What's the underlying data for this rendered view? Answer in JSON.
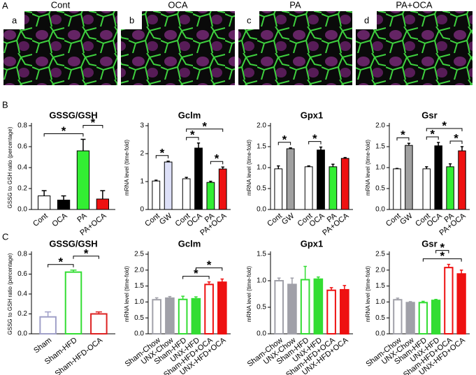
{
  "panel_labels": [
    "A",
    "B",
    "C"
  ],
  "images": [
    {
      "title": "Cont",
      "letter": "a"
    },
    {
      "title": "OCA",
      "letter": "b"
    },
    {
      "title": "PA",
      "letter": "c"
    },
    {
      "title": "PA+OCA",
      "letter": "d"
    }
  ],
  "chart_data": [
    {
      "type": "bar",
      "title": "GSSG/GSH",
      "ylabel": "GSSG to GSH ratio (percentage)",
      "categories": [
        "Cont",
        "OCA",
        "PA",
        "PA+OCA"
      ],
      "values": [
        0.13,
        0.09,
        0.56,
        0.1
      ],
      "errors": [
        0.05,
        0.04,
        0.11,
        0.08
      ],
      "edge_colors": [
        "#000",
        "#000",
        "#000",
        "#000"
      ],
      "fill_colors": [
        "#fff",
        "#000",
        "#33ee33",
        "#ee1111"
      ],
      "ylim": [
        0,
        0.8
      ],
      "yticks": [
        {
          "value": 0,
          "label": "0.0"
        },
        {
          "value": 0.2,
          "label": "0.2"
        },
        {
          "value": 0.4,
          "label": "0.4"
        },
        {
          "value": 0.6,
          "label": "0.6"
        },
        {
          "value": 0.8,
          "label": "0.8"
        }
      ],
      "annotations": [
        {
          "text": "*",
          "between": [
            0,
            2
          ]
        },
        {
          "text": "*",
          "between": [
            2,
            3
          ]
        }
      ]
    },
    {
      "type": "bar",
      "title": "Gclm",
      "ylabel": "mRNA level (time-fold)",
      "categories": [
        "Cont",
        "GW",
        "Cont",
        "OCA",
        "PA",
        "PA+OCA"
      ],
      "values": [
        1.02,
        1.7,
        1.1,
        2.2,
        0.97,
        1.45
      ],
      "errors": [
        0.03,
        0.03,
        0.05,
        0.18,
        0.04,
        0.07
      ],
      "edge_colors": [
        "#000",
        "#000",
        "#000",
        "#000",
        "#000",
        "#000"
      ],
      "fill_colors": [
        "#fff",
        "#dde0f8",
        "#fff",
        "#000",
        "#33ee33",
        "#ee1111"
      ],
      "ylim": [
        0,
        3
      ],
      "yticks": [
        0,
        1,
        2,
        3
      ],
      "annotations": [
        {
          "text": "*",
          "between": [
            0,
            1
          ]
        },
        {
          "text": "*",
          "between": [
            4,
            5
          ]
        },
        {
          "text": "*",
          "between": [
            2,
            3
          ]
        },
        {
          "text": "*",
          "between": [
            2,
            5
          ]
        }
      ]
    },
    {
      "type": "bar",
      "title": "Gpx1",
      "ylabel": "mRNA level (time-fold)",
      "categories": [
        "Cont",
        "GW",
        "Cont",
        "OCA",
        "PA",
        "PA+OCA"
      ],
      "values": [
        0.97,
        1.45,
        1.02,
        1.42,
        1.02,
        1.22
      ],
      "errors": [
        0.07,
        0.02,
        0.02,
        0.07,
        0.06,
        0.02
      ],
      "edge_colors": [
        "#000",
        "#000",
        "#000",
        "#000",
        "#000",
        "#000"
      ],
      "fill_colors": [
        "#fff",
        "#a0a0a0",
        "#fff",
        "#000",
        "#33ee33",
        "#ee1111"
      ],
      "ylim": [
        0,
        2
      ],
      "yticks": [
        {
          "value": 0,
          "label": "0.0"
        },
        {
          "value": 0.5,
          "label": "0.5"
        },
        {
          "value": 1,
          "label": "1.0"
        },
        {
          "value": 1.5,
          "label": "1.5"
        },
        {
          "value": 2,
          "label": "2.0"
        }
      ],
      "annotations": [
        {
          "text": "*",
          "between": [
            0,
            1
          ]
        },
        {
          "text": "*",
          "between": [
            2,
            3
          ]
        }
      ]
    },
    {
      "type": "bar",
      "title": "Gsr",
      "ylabel": "mRNA level (time-fold)",
      "categories": [
        "Cont",
        "GW",
        "Cont",
        "OCA",
        "PA",
        "PA+OCA"
      ],
      "values": [
        0.97,
        1.53,
        0.97,
        1.52,
        1.02,
        1.4
      ],
      "errors": [
        0.01,
        0.05,
        0.05,
        0.08,
        0.07,
        0.1
      ],
      "edge_colors": [
        "#000",
        "#000",
        "#000",
        "#000",
        "#000",
        "#000"
      ],
      "fill_colors": [
        "#fff",
        "#a0a0a0",
        "#fff",
        "#000",
        "#33ee33",
        "#ee1111"
      ],
      "ylim": [
        0,
        2
      ],
      "yticks": [
        {
          "value": 0,
          "label": "0.0"
        },
        {
          "value": 0.5,
          "label": "0.5"
        },
        {
          "value": 1,
          "label": "1.0"
        },
        {
          "value": 1.5,
          "label": "1.5"
        },
        {
          "value": 2,
          "label": "2.0"
        }
      ],
      "annotations": [
        {
          "text": "*",
          "between": [
            0,
            1
          ]
        },
        {
          "text": "*",
          "between": [
            4,
            5
          ]
        },
        {
          "text": "*",
          "between": [
            2,
            3
          ]
        },
        {
          "text": "*",
          "between": [
            2,
            5
          ]
        }
      ]
    },
    {
      "type": "bar",
      "title": "GSSG/GSH",
      "ylabel": "GSSG to GSH ratio (percentage)",
      "categories": [
        "Sham",
        "Sham-HFD",
        "Sham-HFD-OCA"
      ],
      "values": [
        0.17,
        0.62,
        0.2
      ],
      "errors": [
        0.05,
        0.02,
        0.02
      ],
      "edge_colors": [
        "#a0a0c8",
        "#33dd33",
        "#dd2222"
      ],
      "fill_colors": [
        "#fff",
        "#fff",
        "#fff"
      ],
      "ylim": [
        0,
        0.8
      ],
      "yticks": [
        {
          "value": 0,
          "label": "0.0"
        },
        {
          "value": 0.2,
          "label": "0.2"
        },
        {
          "value": 0.4,
          "label": "0.4"
        },
        {
          "value": 0.6,
          "label": "0.6"
        },
        {
          "value": 0.8,
          "label": "0.8"
        }
      ],
      "annotations": [
        {
          "text": "*",
          "between": [
            0,
            1
          ]
        },
        {
          "text": "*",
          "between": [
            1,
            2
          ]
        }
      ]
    },
    {
      "type": "bar",
      "title": "Gclm",
      "ylabel": "mRNA level (time-fold)",
      "categories": [
        "Sham-Chow",
        "UNX-Chow",
        "Sham-HFD",
        "UNX-HFD",
        "Sham-HFD+OCA",
        "UNX-HFD+OCA"
      ],
      "values": [
        1.07,
        1.12,
        1.08,
        1.1,
        1.55,
        1.62
      ],
      "errors": [
        0.06,
        0.05,
        0.1,
        0.06,
        0.08,
        0.1
      ],
      "edge_colors": [
        "#a0a0a8",
        "#a0a0a8",
        "#33dd33",
        "#33dd33",
        "#ee1111",
        "#ee1111"
      ],
      "fill_colors": [
        "#fff",
        "#a0a0a8",
        "#fff",
        "#33dd33",
        "#fff",
        "#ee1111"
      ],
      "ylim": [
        0,
        2.5
      ],
      "yticks": [
        {
          "value": 0,
          "label": "0.0"
        },
        {
          "value": 0.5,
          "label": "0.5"
        },
        {
          "value": 1,
          "label": "1.0"
        },
        {
          "value": 1.5,
          "label": "1.5"
        },
        {
          "value": 2,
          "label": "2.0"
        },
        {
          "value": 2.5,
          "label": "2.5"
        }
      ],
      "annotations": [
        {
          "text": "*",
          "between": [
            2,
            4
          ]
        },
        {
          "text": "*",
          "between": [
            3,
            5
          ]
        }
      ]
    },
    {
      "type": "bar",
      "title": "Gpx1",
      "ylabel": "mRNA level (time-fold)",
      "categories": [
        "Sham-Chow",
        "UNX-Chow",
        "Sham-HFD",
        "UNX-HFD",
        "Sham-HFD+OCA",
        "UNX-HFD+OCA"
      ],
      "values": [
        1,
        0.93,
        1.02,
        1.03,
        0.82,
        0.83
      ],
      "errors": [
        0.05,
        0.12,
        0.25,
        0.04,
        0.05,
        0.08
      ],
      "edge_colors": [
        "#a0a0a8",
        "#a0a0a8",
        "#33dd33",
        "#33dd33",
        "#ee1111",
        "#ee1111"
      ],
      "fill_colors": [
        "#fff",
        "#a0a0a8",
        "#fff",
        "#33dd33",
        "#fff",
        "#ee1111"
      ],
      "ylim": [
        0,
        1.5
      ],
      "yticks": [
        {
          "value": 0,
          "label": "0.0"
        },
        {
          "value": 0.5,
          "label": "0.5"
        },
        {
          "value": 1,
          "label": "1.0"
        },
        {
          "value": 1.5,
          "label": "1.5"
        }
      ],
      "annotations": []
    },
    {
      "type": "bar",
      "title": "Gsr",
      "ylabel": "mRNA level (time-fold)",
      "categories": [
        "Sham-Chow",
        "UNX-Chow",
        "Sham-HFD",
        "UNX-HFD",
        "Sham-HFD+OCA",
        "UNX-HFD+OCA"
      ],
      "values": [
        1.07,
        0.98,
        0.98,
        1.05,
        2.08,
        1.88
      ],
      "errors": [
        0.05,
        0.03,
        0.04,
        0.03,
        0.1,
        0.12
      ],
      "edge_colors": [
        "#a0a0a8",
        "#a0a0a8",
        "#33dd33",
        "#33dd33",
        "#ee1111",
        "#ee1111"
      ],
      "fill_colors": [
        "#fff",
        "#a0a0a8",
        "#fff",
        "#33dd33",
        "#fff",
        "#ee1111"
      ],
      "ylim": [
        0,
        2.5
      ],
      "yticks": [
        {
          "value": 0,
          "label": "0.0"
        },
        {
          "value": 0.5,
          "label": "0.5"
        },
        {
          "value": 1,
          "label": "1.0"
        },
        {
          "value": 1.5,
          "label": "1.5"
        },
        {
          "value": 2,
          "label": "2.0"
        },
        {
          "value": 2.5,
          "label": "2.5"
        }
      ],
      "annotations": [
        {
          "text": "*",
          "between": [
            2,
            5
          ]
        },
        {
          "text": "*",
          "between": [
            3,
            4
          ]
        }
      ]
    }
  ]
}
